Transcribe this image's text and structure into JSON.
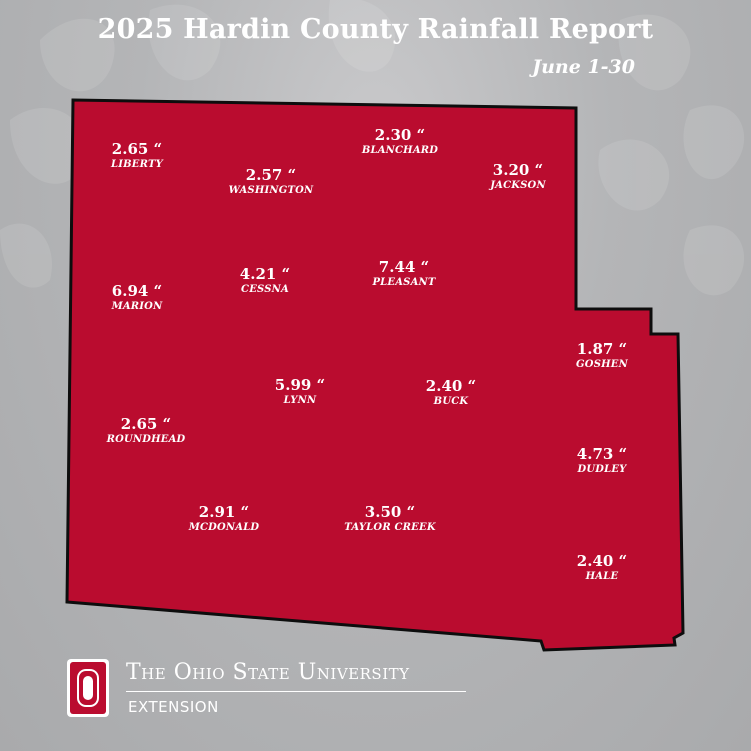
{
  "title": "2025 Hardin County Rainfall Report",
  "subtitle": "June 1-30",
  "colors": {
    "county_fill": "#ba0c2f",
    "background": "#b4b5b7",
    "text": "#ffffff"
  },
  "townships": [
    {
      "name": "LIBERTY",
      "rainfall": "2.65 “"
    },
    {
      "name": "BLANCHARD",
      "rainfall": "2.30 “"
    },
    {
      "name": "WASHINGTON",
      "rainfall": "2.57 “"
    },
    {
      "name": "JACKSON",
      "rainfall": "3.20 “"
    },
    {
      "name": "MARION",
      "rainfall": "6.94 “"
    },
    {
      "name": "CESSNA",
      "rainfall": "4.21 “"
    },
    {
      "name": "PLEASANT",
      "rainfall": "7.44 “"
    },
    {
      "name": "GOSHEN",
      "rainfall": "1.87 “"
    },
    {
      "name": "LYNN",
      "rainfall": "5.99 “"
    },
    {
      "name": "BUCK",
      "rainfall": "2.40 “"
    },
    {
      "name": "ROUNDHEAD",
      "rainfall": "2.65 “"
    },
    {
      "name": "DUDLEY",
      "rainfall": "4.73 “"
    },
    {
      "name": "MCDONALD",
      "rainfall": "2.91 “"
    },
    {
      "name": "TAYLOR CREEK",
      "rainfall": "3.50 “"
    },
    {
      "name": "HALE",
      "rainfall": "2.40 “"
    }
  ],
  "footer": {
    "logo_letter": "O",
    "university": "The Ohio State University",
    "unit": "EXTENSION"
  }
}
